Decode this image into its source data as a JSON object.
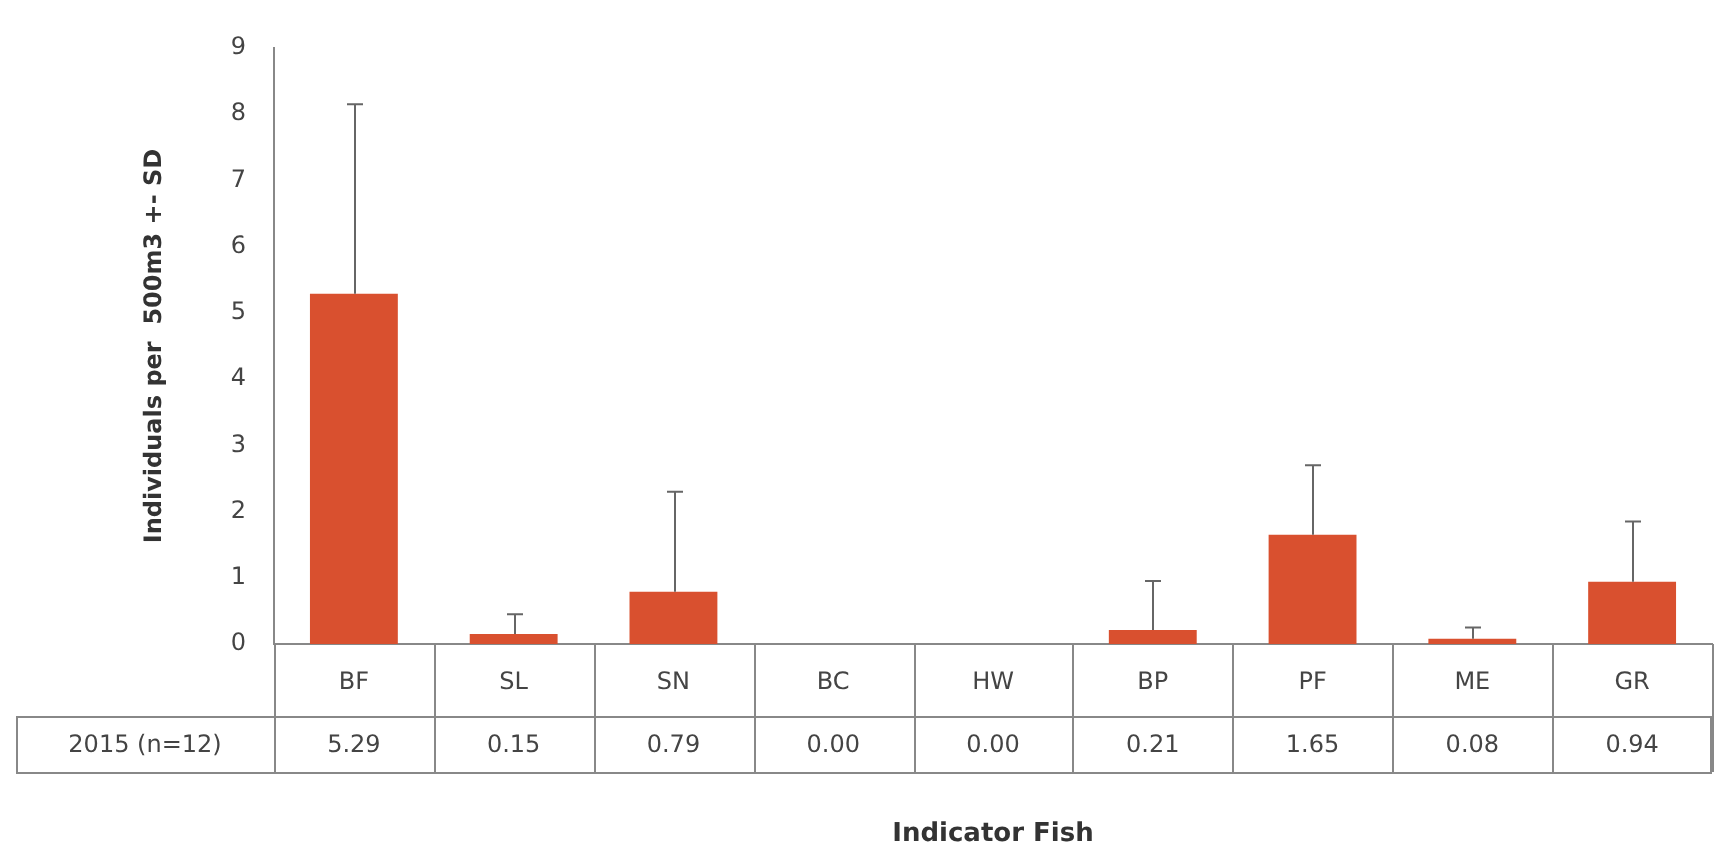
{
  "chart_data": {
    "type": "bar",
    "xlabel": "Indicator Fish",
    "ylabel": "Individuals per  500m3 +- SD",
    "categories": [
      "BF",
      "SL",
      "SN",
      "BC",
      "HW",
      "BP",
      "PF",
      "ME",
      "GR"
    ],
    "series": [
      {
        "name": "2015 (n=12)",
        "color": "#d9502f",
        "values": [
          5.29,
          0.15,
          0.79,
          0.0,
          0.0,
          0.21,
          1.65,
          0.08,
          0.94
        ],
        "value_labels": [
          "5.29",
          "0.15",
          "0.79",
          "0.00",
          "0.00",
          "0.21",
          "1.65",
          "0.08",
          "0.94"
        ],
        "errors": [
          [
            5.29,
            8.15
          ],
          [
            0.15,
            0.45
          ],
          [
            0.79,
            2.3
          ],
          null,
          null,
          [
            0.21,
            0.95
          ],
          [
            1.65,
            2.7
          ],
          [
            0.08,
            0.25
          ],
          [
            0.94,
            1.85
          ]
        ]
      }
    ],
    "ylim": [
      0,
      9
    ],
    "yticks": [
      0,
      1,
      2,
      3,
      4,
      5,
      6,
      7,
      8,
      9
    ],
    "grid": false,
    "legend": false
  }
}
